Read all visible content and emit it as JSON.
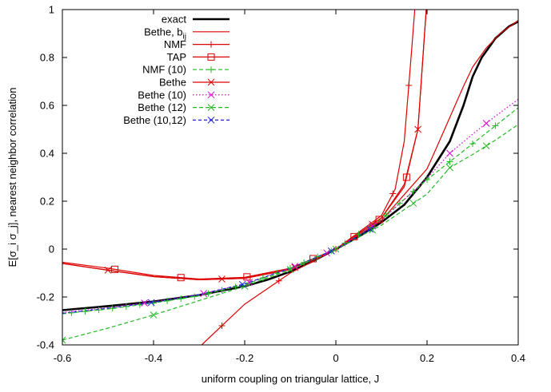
{
  "chart_data": {
    "type": "line",
    "title": "",
    "xlabel": "uniform coupling on triangular lattice, J",
    "ylabel": "E[σ_i σ_j], nearest neighbor correlation",
    "xlim": [
      -0.6,
      0.4
    ],
    "ylim": [
      -0.4,
      1.0
    ],
    "xticks": [
      -0.6,
      -0.4,
      -0.2,
      0,
      0.2,
      0.4
    ],
    "xtick_labels": [
      "-0.6",
      "-0.4",
      "-0.2",
      "0",
      "0.2",
      "0.4"
    ],
    "yticks": [
      -0.4,
      -0.2,
      0,
      0.2,
      0.4,
      0.6,
      0.8,
      1.0
    ],
    "ytick_labels": [
      "-0.4",
      "-0.2",
      "0",
      "0.2",
      "0.4",
      "0.6",
      "0.8",
      "1"
    ],
    "grid": false,
    "legend_position": "top-left",
    "series": [
      {
        "name": "exact",
        "color": "#000000",
        "width": 2.6,
        "dash": "",
        "marker": "none",
        "x": [
          -0.6,
          -0.5,
          -0.4,
          -0.3,
          -0.2,
          -0.15,
          -0.1,
          -0.05,
          0,
          0.05,
          0.1,
          0.15,
          0.2,
          0.25,
          0.28,
          0.3,
          0.32,
          0.35,
          0.38,
          0.4
        ],
        "y": [
          -0.255,
          -0.238,
          -0.219,
          -0.192,
          -0.155,
          -0.128,
          -0.094,
          -0.05,
          0,
          0.052,
          0.112,
          0.185,
          0.3,
          0.45,
          0.6,
          0.72,
          0.8,
          0.88,
          0.93,
          0.95
        ]
      },
      {
        "name": "Bethe, b_ij",
        "color": "#dd0000",
        "width": 1.2,
        "dash": "",
        "marker": "none",
        "x": [
          -0.6,
          -0.5,
          -0.4,
          -0.3,
          -0.2,
          -0.1,
          0,
          0.1,
          0.2,
          0.22,
          0.25,
          0.28,
          0.3,
          0.33,
          0.36,
          0.4
        ],
        "y": [
          -0.06,
          -0.088,
          -0.115,
          -0.128,
          -0.122,
          -0.085,
          0,
          0.12,
          0.335,
          0.42,
          0.55,
          0.68,
          0.76,
          0.84,
          0.9,
          0.955
        ]
      },
      {
        "name": "NMF",
        "color": "#dd0000",
        "width": 1.2,
        "dash": "",
        "marker": "plus",
        "x": [
          -0.4,
          -0.3,
          -0.2,
          -0.1,
          0,
          0.1,
          0.13,
          0.15,
          0.165,
          0.175
        ],
        "y": [
          -0.58,
          -0.41,
          -0.23,
          -0.1,
          0,
          0.14,
          0.25,
          0.45,
          0.8,
          1.05
        ],
        "markers_at": [
          -0.25,
          -0.125,
          0,
          0.125,
          0.16
        ]
      },
      {
        "name": "TAP",
        "color": "#dd0000",
        "width": 1.2,
        "dash": "",
        "marker": "square",
        "x": [
          -0.6,
          -0.5,
          -0.4,
          -0.3,
          -0.2,
          -0.1,
          0,
          0.1,
          0.15,
          0.18,
          0.2
        ],
        "y": [
          -0.055,
          -0.08,
          -0.11,
          -0.125,
          -0.118,
          -0.08,
          0,
          0.13,
          0.26,
          0.5,
          1.05
        ],
        "markers_at": [
          -0.485,
          -0.34,
          -0.195,
          -0.05,
          0.04,
          0.095,
          0.155
        ]
      },
      {
        "name": "NMF (10)",
        "color": "#22bb22",
        "width": 1.2,
        "dash": "5,3",
        "marker": "plus",
        "x": [
          -0.6,
          -0.5,
          -0.4,
          -0.3,
          -0.2,
          -0.1,
          0,
          0.1,
          0.2,
          0.3,
          0.4
        ],
        "y": [
          -0.27,
          -0.25,
          -0.225,
          -0.195,
          -0.148,
          -0.08,
          0,
          0.125,
          0.29,
          0.44,
          0.59
        ],
        "markers_at": [
          -0.58,
          -0.55,
          -0.52,
          -0.49,
          -0.46,
          -0.43,
          -0.4,
          -0.37,
          -0.34,
          -0.31,
          -0.28,
          -0.25,
          -0.22,
          -0.19,
          -0.16,
          -0.13,
          -0.1,
          -0.07,
          -0.04,
          -0.01,
          0.02,
          0.05,
          0.08,
          0.11,
          0.14,
          0.17,
          0.2,
          0.25,
          0.3,
          0.35
        ]
      },
      {
        "name": "Bethe",
        "color": "#dd0000",
        "width": 1.2,
        "dash": "",
        "marker": "x",
        "x": [
          -0.6,
          -0.5,
          -0.4,
          -0.3,
          -0.2,
          -0.1,
          0,
          0.1,
          0.15,
          0.18,
          0.2
        ],
        "y": [
          -0.06,
          -0.088,
          -0.115,
          -0.128,
          -0.122,
          -0.085,
          0,
          0.13,
          0.27,
          0.5,
          1.05
        ],
        "markers_at": [
          -0.5,
          -0.25,
          -0.09,
          0.08,
          0.18
        ]
      },
      {
        "name": "Bethe (10)",
        "color": "#dd00dd",
        "width": 1.2,
        "dash": "1.5,2.5",
        "marker": "x",
        "x": [
          -0.6,
          -0.5,
          -0.4,
          -0.3,
          -0.2,
          -0.1,
          0,
          0.1,
          0.2,
          0.25,
          0.3,
          0.35,
          0.4
        ],
        "y": [
          -0.265,
          -0.245,
          -0.22,
          -0.19,
          -0.145,
          -0.08,
          0,
          0.12,
          0.295,
          0.4,
          0.48,
          0.555,
          0.625
        ],
        "markers_at": [
          -0.42,
          -0.29,
          -0.19,
          -0.09,
          -0.02,
          0.08,
          0.25,
          0.33
        ]
      },
      {
        "name": "Bethe (12)",
        "color": "#22bb22",
        "width": 1.2,
        "dash": "5,3",
        "marker": "x",
        "x": [
          -0.6,
          -0.5,
          -0.4,
          -0.3,
          -0.2,
          -0.1,
          0,
          0.1,
          0.2,
          0.25,
          0.3,
          0.35,
          0.4
        ],
        "y": [
          -0.38,
          -0.33,
          -0.275,
          -0.215,
          -0.155,
          -0.085,
          0,
          0.1,
          0.23,
          0.34,
          0.395,
          0.455,
          0.52
        ],
        "markers_at": [
          -0.6,
          -0.4,
          -0.2,
          -0.1,
          0,
          0.08,
          0.17,
          0.25,
          0.33
        ]
      },
      {
        "name": "Bethe (10,12)",
        "color": "#2222dd",
        "width": 1.2,
        "dash": "4,3",
        "marker": "x",
        "x": [
          -0.6,
          -0.5,
          -0.4,
          -0.3,
          -0.2,
          -0.1,
          0,
          0.05,
          0.09
        ],
        "y": [
          -0.268,
          -0.247,
          -0.222,
          -0.19,
          -0.145,
          -0.08,
          0,
          0.055,
          0.1
        ],
        "markers_at": [
          -0.405,
          -0.205,
          -0.01,
          0.075
        ]
      }
    ]
  }
}
